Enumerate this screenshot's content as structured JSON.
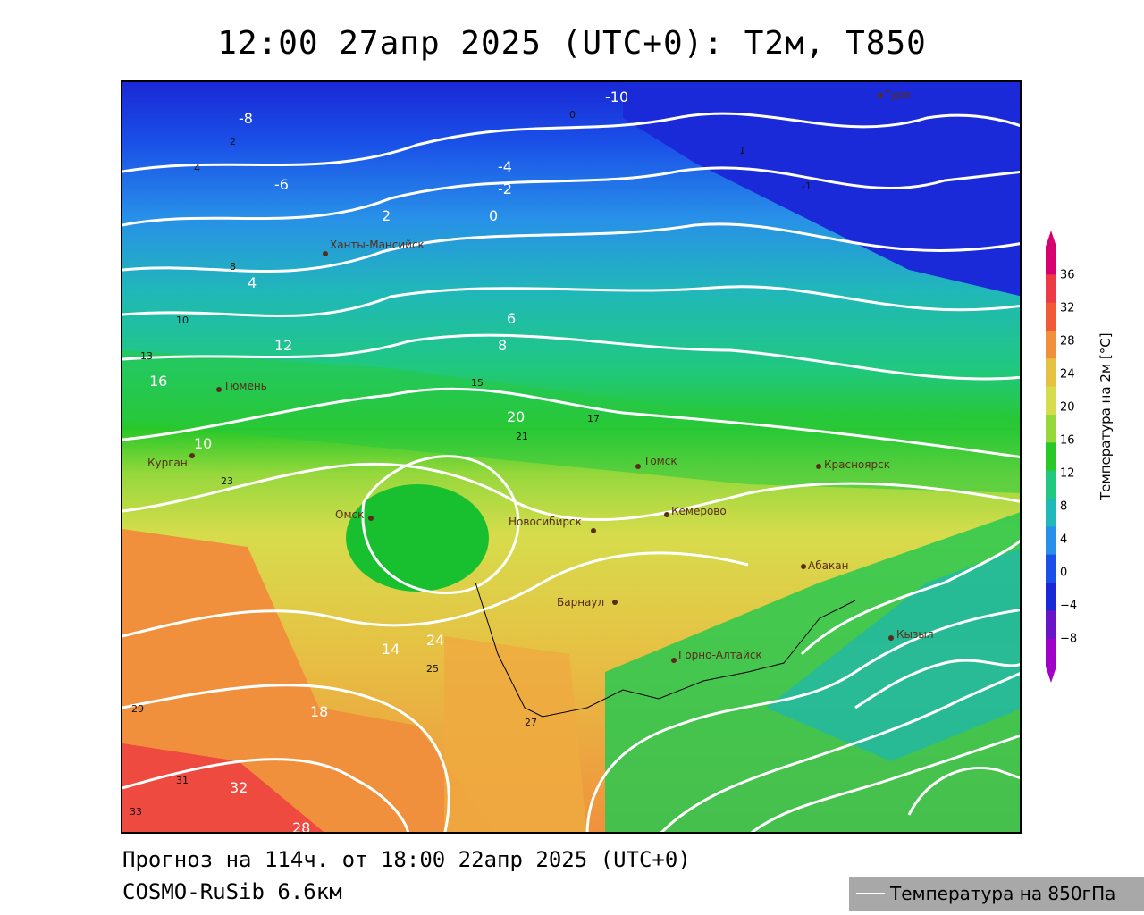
{
  "title": "12:00 27апр 2025 (UTC+0): T2м, T850",
  "footer": {
    "forecast": "Прогноз на 114ч. от 18:00 22апр 2025 (UTC+0)",
    "model": "COSMO-RuSib 6.6км"
  },
  "legend": {
    "label": "Температура на 850гПа",
    "line_color": "#ffffff"
  },
  "colorbar": {
    "title": "Температура на 2м [°C]",
    "ticks": [
      "36",
      "32",
      "28",
      "24",
      "20",
      "16",
      "12",
      "8",
      "4",
      "0",
      "−4",
      "−8"
    ],
    "colors": [
      "#d6006e",
      "#ee3a46",
      "#f05a36",
      "#f0903c",
      "#e6c244",
      "#d6dc4c",
      "#96d83c",
      "#28c828",
      "#20c880",
      "#20b8b8",
      "#2890e8",
      "#1a50e8",
      "#1a28d6",
      "#6a14c8",
      "#a000c8"
    ]
  },
  "cities": [
    {
      "name": "Ханты-Мансийск"
    },
    {
      "name": "Тюмень"
    },
    {
      "name": "Курган"
    },
    {
      "name": "Омск"
    },
    {
      "name": "Новосибирск"
    },
    {
      "name": "Томск"
    },
    {
      "name": "Кемерово"
    },
    {
      "name": "Барнаул"
    },
    {
      "name": "Горно-Алтайск"
    },
    {
      "name": "Абакан"
    },
    {
      "name": "Красноярск"
    },
    {
      "name": "Кызыл"
    },
    {
      "name": "Тура"
    }
  ],
  "isotherm_labels": [
    "-10",
    "-8",
    "-6",
    "-4",
    "-2",
    "0",
    "2",
    "4",
    "6",
    "8",
    "10",
    "12",
    "14",
    "16",
    "18",
    "20",
    "24",
    "28",
    "32"
  ],
  "t2m_samples": [
    "0",
    "1",
    "-1",
    "2",
    "4",
    "8",
    "10",
    "13",
    "15",
    "17",
    "21",
    "23",
    "25",
    "27",
    "29",
    "31",
    "33"
  ]
}
